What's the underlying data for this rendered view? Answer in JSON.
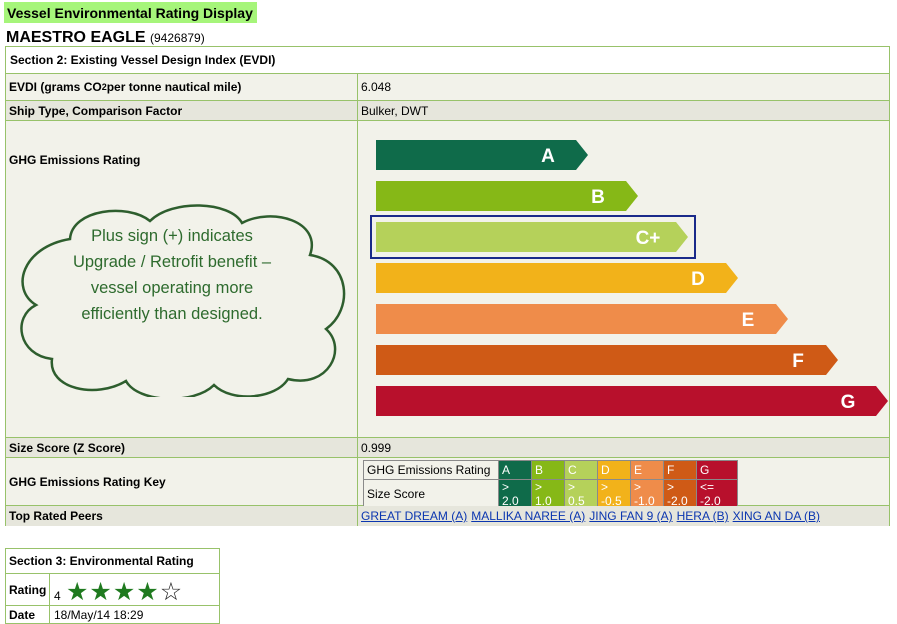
{
  "header": {
    "title": "Vessel Environmental Rating Display"
  },
  "vessel": {
    "name": "MAESTRO EAGLE",
    "imo": "(9426879)"
  },
  "section2": {
    "title": "Section 2: Existing Vessel Design Index (EVDI)",
    "evdi_label_a": "EVDI (grams CO",
    "evdi_label_sub": "2",
    "evdi_label_b": " per tonne nautical mile)",
    "evdi_value": "6.048",
    "ship_type_label": "Ship Type, Comparison Factor",
    "ship_type_value": "Bulker, DWT",
    "ghg_label": "GHG Emissions Rating",
    "bars": [
      {
        "letter": "A",
        "color": "#0f6b4a"
      },
      {
        "letter": "B",
        "color": "#86b817"
      },
      {
        "letter": "C+",
        "color": "#b5d15a"
      },
      {
        "letter": "D",
        "color": "#f2b21a"
      },
      {
        "letter": "E",
        "color": "#ef8c4a"
      },
      {
        "letter": "F",
        "color": "#cf5a16"
      },
      {
        "letter": "G",
        "color": "#b8102c"
      }
    ],
    "selected_rating": "C+",
    "callout": "Plus sign (+) indicates Upgrade / Retrofit benefit – vessel operating more efficiently than designed.",
    "size_score_label": "Size Score (Z Score)",
    "size_score_value": "0.999",
    "key_label": "GHG Emissions Rating Key",
    "key": {
      "row1_label": "GHG Emissions Rating",
      "row2_label": "Size Score",
      "grades": [
        "A",
        "B",
        "C",
        "D",
        "E",
        "F",
        "G"
      ],
      "scores": [
        "> 2.0",
        "> 1.0",
        "> 0.5",
        "> -0.5",
        "> -1.0",
        "> -2.0",
        "<= -2.0"
      ],
      "colors": [
        "#0f6b4a",
        "#86b817",
        "#b5d15a",
        "#f2b21a",
        "#ef8c4a",
        "#cf5a16",
        "#b8102c"
      ]
    },
    "peers_label": "Top Rated Peers",
    "peers": [
      "GREAT DREAM (A)",
      "MALLIKA NAREE (A)",
      "JING FAN 9 (A)",
      "HERA (B)",
      "XING AN DA (B)"
    ]
  },
  "section3": {
    "title": "Section 3: Environmental Rating",
    "rating_label": "Rating",
    "rating_value": "4",
    "stars_filled": 4,
    "stars_total": 5,
    "date_label": "Date",
    "date_value": "18/May/14 18:29"
  }
}
